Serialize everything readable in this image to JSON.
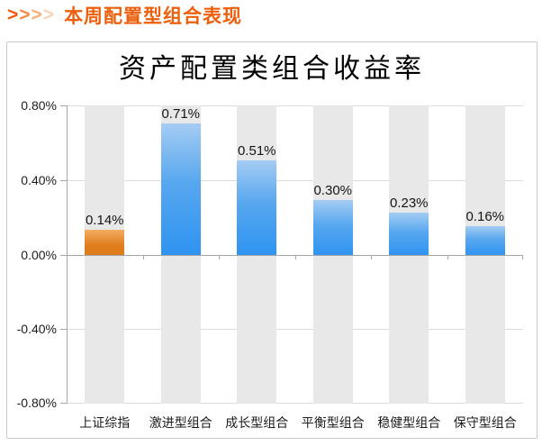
{
  "header": {
    "arrows": [
      ">",
      ">",
      ">",
      ">"
    ],
    "arrow_colors": [
      "#F15A0A",
      "#F48943",
      "#F7AE7C",
      "#FAD4B8"
    ],
    "title": "本周配置型组合表现",
    "title_color": "#ED5F0D"
  },
  "chart_data": {
    "type": "bar",
    "title": "资产配置类组合收益率",
    "categories": [
      "上证综指",
      "激进型组合",
      "成长型组合",
      "平衡型组合",
      "稳健型组合",
      "保守型组合"
    ],
    "values": [
      0.14,
      0.71,
      0.51,
      0.3,
      0.23,
      0.16
    ],
    "value_labels": [
      "0.14%",
      "0.71%",
      "0.51%",
      "0.30%",
      "0.23%",
      "0.16%"
    ],
    "unit": "%",
    "ylim": [
      -0.8,
      0.8
    ],
    "ytick_labels": [
      "0.80%",
      "0.40%",
      "0.00%",
      "-0.40%",
      "-0.80%"
    ],
    "ytick_values": [
      0.8,
      0.4,
      0.0,
      -0.4,
      -0.8
    ],
    "grid": true,
    "legend": "none",
    "highlight_index": 0,
    "colors": {
      "highlight_bar_top": "#F4AD63",
      "highlight_bar_bottom": "#DF7C1B",
      "default_bar_top": "#A4CCF3",
      "default_bar_mid": "#57A7EF",
      "default_bar_bottom": "#2E93F0",
      "stripe": "#E8E8E8",
      "gridline": "#DCDCDC",
      "axis": "#A6A6A6"
    }
  }
}
